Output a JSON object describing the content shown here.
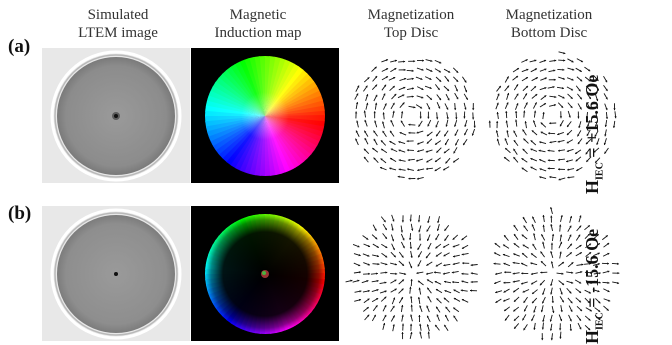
{
  "columns": [
    {
      "line1": "Simulated",
      "line2": "LTEM image"
    },
    {
      "line1": "Magnetic",
      "line2": "Induction map"
    },
    {
      "line1": "Magnetization",
      "line2": "Top Disc"
    },
    {
      "line1": "Magnetization",
      "line2": "Bottom Disc"
    }
  ],
  "rows": [
    {
      "label": "(a)",
      "field_prefix": "H",
      "field_sub": "IEC",
      "field_value": " = +15.6 Oe"
    },
    {
      "label": "(b)",
      "field_prefix": "H",
      "field_sub": "IEC",
      "field_value": " = -15.6 Oe"
    }
  ]
}
